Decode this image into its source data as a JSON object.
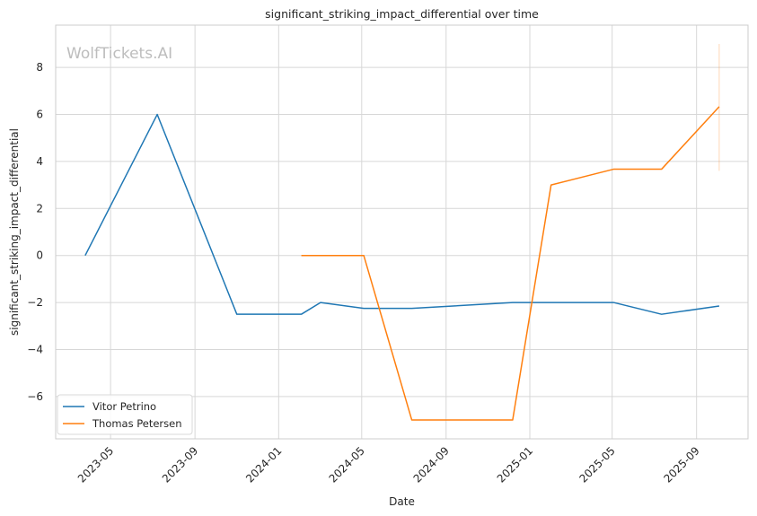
{
  "chart_data": {
    "type": "line",
    "title": "significant_striking_impact_differential over time",
    "xlabel": "Date",
    "ylabel": "significant_striking_impact_differential",
    "watermark": "WolfTickets.AI",
    "x_ticks": [
      "2023-05",
      "2023-09",
      "2024-01",
      "2024-05",
      "2024-09",
      "2025-01",
      "2025-05",
      "2025-09"
    ],
    "y_ticks": [
      "−6",
      "−4",
      "−2",
      "0",
      "2",
      "4",
      "6",
      "8"
    ],
    "xlim": [
      "2023-02-10",
      "2025-11-15"
    ],
    "ylim": [
      -7.8,
      9.8
    ],
    "grid": true,
    "legend_position": "bottom-left",
    "series": [
      {
        "name": "Vitor Petrino",
        "color": "#1f77b4",
        "points": [
          [
            "2023-03-25",
            0
          ],
          [
            "2023-07-08",
            6
          ],
          [
            "2023-11-01",
            -2.5
          ],
          [
            "2024-02-03",
            -2.5
          ],
          [
            "2024-03-02",
            -2
          ],
          [
            "2024-05-04",
            -2.25
          ],
          [
            "2024-07-13",
            -2.25
          ],
          [
            "2024-12-07",
            -2
          ],
          [
            "2025-05-03",
            -2
          ],
          [
            "2025-07-12",
            -2.5
          ],
          [
            "2025-10-04",
            -2.15
          ]
        ]
      },
      {
        "name": "Thomas Petersen",
        "color": "#ff7f0e",
        "points": [
          [
            "2024-02-03",
            0
          ],
          [
            "2024-05-04",
            0
          ],
          [
            "2024-07-13",
            -7
          ],
          [
            "2024-12-07",
            -7
          ],
          [
            "2025-02-01",
            3
          ],
          [
            "2025-05-03",
            3.67
          ],
          [
            "2025-07-12",
            3.67
          ],
          [
            "2025-10-04",
            6.33
          ]
        ],
        "error_bar": {
          "x": "2025-10-04",
          "low": 3.6,
          "high": 9.0
        }
      }
    ]
  }
}
